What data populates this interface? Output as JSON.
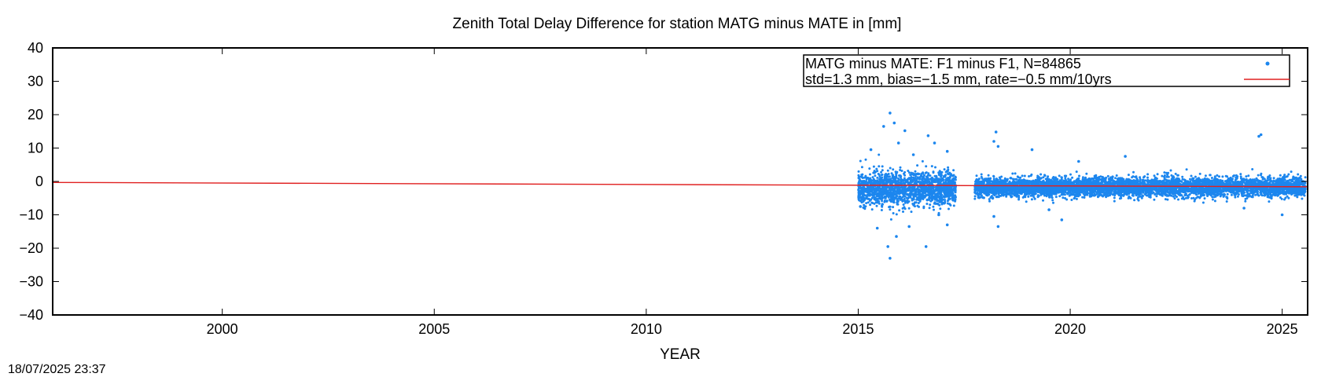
{
  "chart_data": {
    "type": "scatter",
    "title": "Zenith Total Delay Difference for station MATG minus MATE in [mm]",
    "xlabel": "YEAR",
    "ylabel": "",
    "xlim": [
      1996.0,
      2025.6
    ],
    "ylim": [
      -40,
      40
    ],
    "xticks": [
      2000,
      2005,
      2010,
      2015,
      2020,
      2025
    ],
    "yticks": [
      -40,
      -30,
      -20,
      -10,
      0,
      10,
      20,
      30,
      40
    ],
    "grid": false,
    "legend_position": "top-right",
    "legend": [
      "MATG minus MATE: F1 minus F1, N=84865",
      "std=1.3 mm, bias=−1.5 mm, rate=−0.5 mm/10yrs"
    ],
    "series": [
      {
        "name": "MATG minus MATE: F1 minus F1, N=84865",
        "kind": "points",
        "color": "#1c86ee",
        "segments": [
          {
            "x_start": 2015.0,
            "x_end": 2017.3,
            "center": -2.0,
            "spread": 2.5
          },
          {
            "x_start": 2017.75,
            "x_end": 2025.55,
            "center": -1.7,
            "spread": 1.4
          }
        ],
        "outliers": [
          {
            "x": 2015.75,
            "y": 20.5
          },
          {
            "x": 2015.6,
            "y": 16.5
          },
          {
            "x": 2015.85,
            "y": 17.5
          },
          {
            "x": 2016.1,
            "y": 15.2
          },
          {
            "x": 2016.65,
            "y": 13.7
          },
          {
            "x": 2015.95,
            "y": 11.5
          },
          {
            "x": 2016.8,
            "y": 11.5
          },
          {
            "x": 2015.3,
            "y": 9.5
          },
          {
            "x": 2016.3,
            "y": 8.0
          },
          {
            "x": 2017.1,
            "y": 9.0
          },
          {
            "x": 2018.25,
            "y": 14.8
          },
          {
            "x": 2018.2,
            "y": 12.0
          },
          {
            "x": 2018.3,
            "y": 10.5
          },
          {
            "x": 2019.1,
            "y": 9.5
          },
          {
            "x": 2021.3,
            "y": 7.5
          },
          {
            "x": 2024.45,
            "y": 13.5
          },
          {
            "x": 2024.5,
            "y": 14.0
          },
          {
            "x": 2020.2,
            "y": 6.0
          },
          {
            "x": 2015.75,
            "y": -23.0
          },
          {
            "x": 2015.7,
            "y": -19.5
          },
          {
            "x": 2016.6,
            "y": -19.5
          },
          {
            "x": 2015.9,
            "y": -16.5
          },
          {
            "x": 2015.45,
            "y": -14.0
          },
          {
            "x": 2016.2,
            "y": -13.5
          },
          {
            "x": 2017.1,
            "y": -13.0
          },
          {
            "x": 2018.3,
            "y": -13.5
          },
          {
            "x": 2018.2,
            "y": -10.5
          },
          {
            "x": 2019.5,
            "y": -8.5
          },
          {
            "x": 2019.8,
            "y": -11.5
          },
          {
            "x": 2025.0,
            "y": -10.0
          },
          {
            "x": 2024.1,
            "y": -8.0
          },
          {
            "x": 2015.05,
            "y": -7.5
          },
          {
            "x": 2016.9,
            "y": -10.0
          }
        ]
      },
      {
        "name": "std=1.3 mm, bias=−1.5 mm, rate=−0.5 mm/10yrs",
        "kind": "line",
        "color": "#e02020",
        "x": [
          1996.0,
          2025.6
        ],
        "y": [
          -0.3,
          -1.6
        ]
      }
    ]
  },
  "footer": {
    "timestamp": "18/07/2025 23:37"
  }
}
